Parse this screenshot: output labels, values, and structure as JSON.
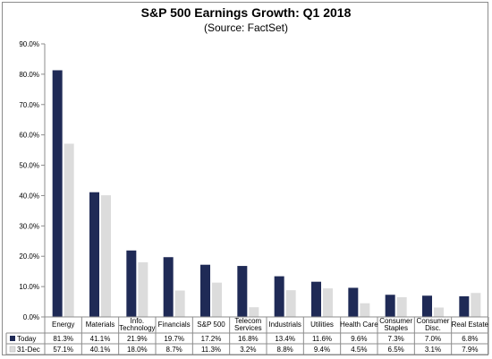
{
  "chart_data": {
    "type": "bar",
    "title": "S&P 500 Earnings Growth: Q1 2018",
    "subtitle": "(Source: FactSet)",
    "categories": [
      [
        "Energy"
      ],
      [
        "Materials"
      ],
      [
        "Info.",
        "Technology"
      ],
      [
        "Financials"
      ],
      [
        "S&P 500"
      ],
      [
        "Telecom",
        "Services"
      ],
      [
        "Industrials"
      ],
      [
        "Utilities"
      ],
      [
        "Health Care"
      ],
      [
        "Consumer",
        "Staples"
      ],
      [
        "Consumer",
        "Disc."
      ],
      [
        "Real Estate"
      ]
    ],
    "series": [
      {
        "name": "Today",
        "color": "#1f2a56",
        "values": [
          81.3,
          41.1,
          21.9,
          19.7,
          17.2,
          16.8,
          13.4,
          11.6,
          9.6,
          7.3,
          7.0,
          6.8
        ],
        "labels": [
          "81.3%",
          "41.1%",
          "21.9%",
          "19.7%",
          "17.2%",
          "16.8%",
          "13.4%",
          "11.6%",
          "9.6%",
          "7.3%",
          "7.0%",
          "6.8%"
        ]
      },
      {
        "name": "31-Dec",
        "color": "#dcdcdc",
        "values": [
          57.1,
          40.1,
          18.0,
          8.7,
          11.3,
          3.2,
          8.8,
          9.4,
          4.5,
          6.5,
          3.1,
          7.9
        ],
        "labels": [
          "57.1%",
          "40.1%",
          "18.0%",
          "8.7%",
          "11.3%",
          "3.2%",
          "8.8%",
          "9.4%",
          "4.5%",
          "6.5%",
          "3.1%",
          "7.9%"
        ]
      }
    ],
    "ylim": [
      0,
      90
    ],
    "yticks": [
      0,
      10,
      20,
      30,
      40,
      50,
      60,
      70,
      80,
      90
    ],
    "ytick_labels": [
      "0.0%",
      "10.0%",
      "20.0%",
      "30.0%",
      "40.0%",
      "50.0%",
      "60.0%",
      "70.0%",
      "80.0%",
      "90.0%"
    ],
    "grid": false,
    "legend": "data-table"
  }
}
